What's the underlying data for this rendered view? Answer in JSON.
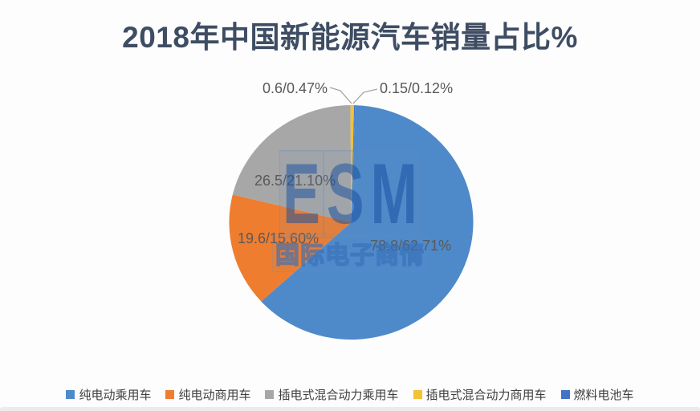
{
  "title": "2018年中国新能源汽车销量占比%",
  "watermark": {
    "brand": "ESM",
    "subtitle": "国际电子商情"
  },
  "chart_data": {
    "type": "pie",
    "title": "2018年中国新能源汽车销量占比%",
    "direction": "clockwise",
    "start_angle_deg": 1.8,
    "legend_position": "bottom",
    "label_format": "sales/share%",
    "series": [
      {
        "name": "纯电动乘用车",
        "sales": 78.8,
        "value": 62.71,
        "label": "78.8/62.71%",
        "color": "#4e8aca"
      },
      {
        "name": "纯电动商用车",
        "sales": 19.6,
        "value": 15.6,
        "label": "19.6/15.60%",
        "color": "#ee7d2f"
      },
      {
        "name": "插电式混合动力乘用车",
        "sales": 26.5,
        "value": 21.1,
        "label": "26.5/21.10%",
        "color": "#a7a7a7"
      },
      {
        "name": "插电式混合动力商用车",
        "sales": 0.6,
        "value": 0.47,
        "label": "0.6/0.47%",
        "color": "#f2c237"
      },
      {
        "name": "燃料电池车",
        "sales": 0.15,
        "value": 0.12,
        "label": "0.15/0.12%",
        "color": "#4472c4"
      }
    ],
    "colors": {
      "title": "#3e4d63",
      "data_label": "#595959",
      "legend_text": "#3f3f3f",
      "leader_line": "#a6a6a6"
    }
  }
}
